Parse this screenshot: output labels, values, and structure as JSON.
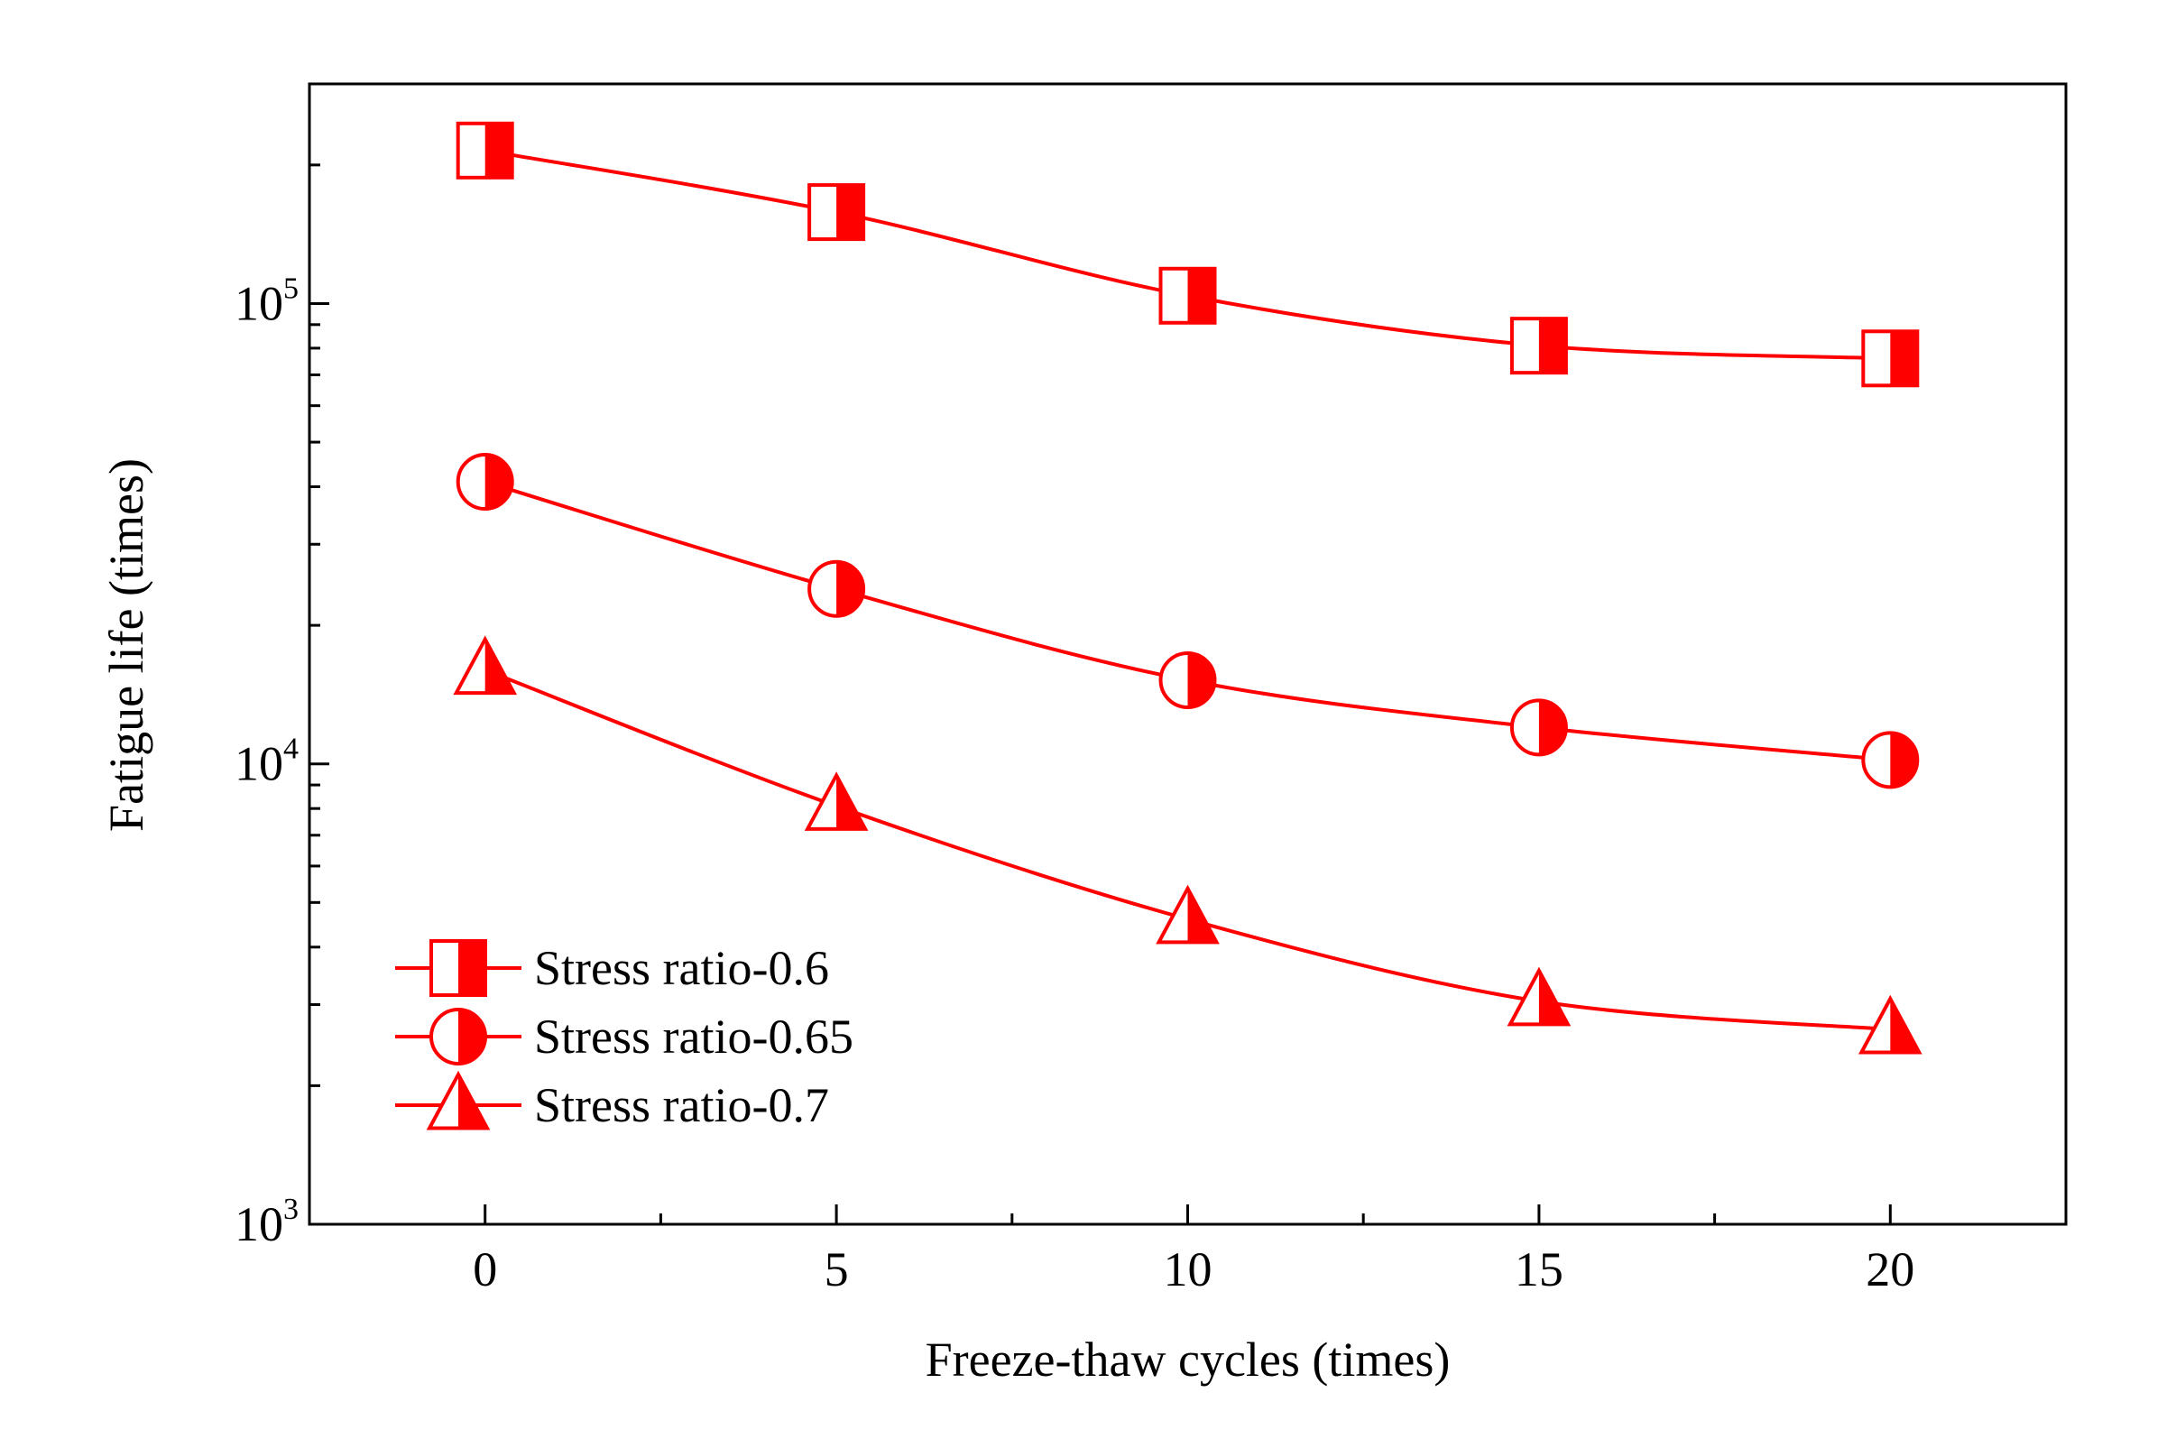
{
  "chart_data": {
    "type": "line",
    "title": "",
    "xlabel": "Freeze-thaw cycles (times)",
    "ylabel": "Fatigue life (times)",
    "x": [
      0,
      5,
      10,
      15,
      20
    ],
    "xlim": [
      -2.5,
      22.5
    ],
    "ylim": [
      1000,
      300000
    ],
    "yscale": "log",
    "x_ticks": [
      "0",
      "5",
      "10",
      "15",
      "20"
    ],
    "y_ticks": [
      {
        "base": "10",
        "exp": "3",
        "value": 1000
      },
      {
        "base": "10",
        "exp": "4",
        "value": 10000
      },
      {
        "base": "10",
        "exp": "5",
        "value": 100000
      }
    ],
    "legend_position": "bottom-left",
    "series": [
      {
        "name": "Stress ratio-0.6",
        "marker": "half-square",
        "values": [
          215000,
          158000,
          104000,
          81000,
          76000
        ]
      },
      {
        "name": "Stress ratio-0.65",
        "marker": "half-circle",
        "values": [
          41000,
          24000,
          15200,
          12000,
          10200
        ]
      },
      {
        "name": "Stress ratio-0.7",
        "marker": "half-triangle",
        "values": [
          16000,
          8100,
          4600,
          3050,
          2650
        ]
      }
    ],
    "color": "#ff0000"
  }
}
